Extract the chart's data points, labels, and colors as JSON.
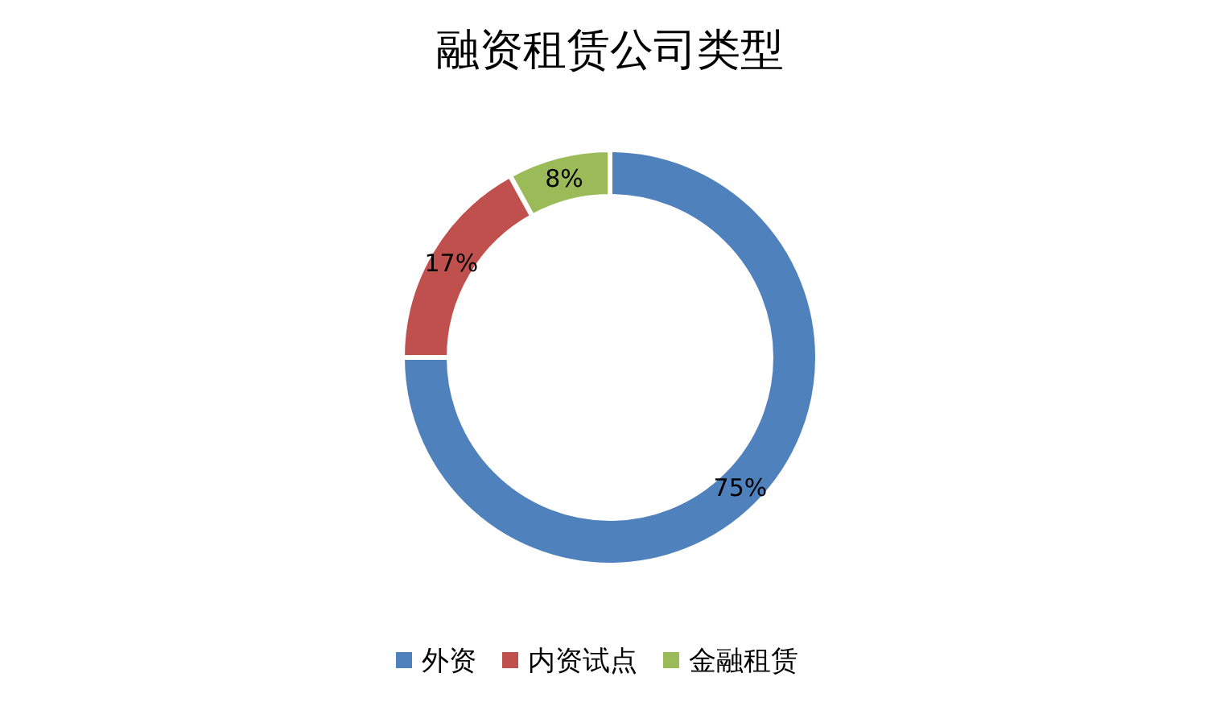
{
  "chart_data": {
    "type": "donut",
    "title": "融资租赁公司类型",
    "categories": [
      "外资",
      "内资试点",
      "金融租赁"
    ],
    "values": [
      75,
      17,
      8
    ],
    "colors": [
      "#4f81bd",
      "#c0504d",
      "#9bbb59"
    ],
    "value_labels": [
      "75%",
      "17%",
      "8%"
    ],
    "legend": "bottom"
  }
}
